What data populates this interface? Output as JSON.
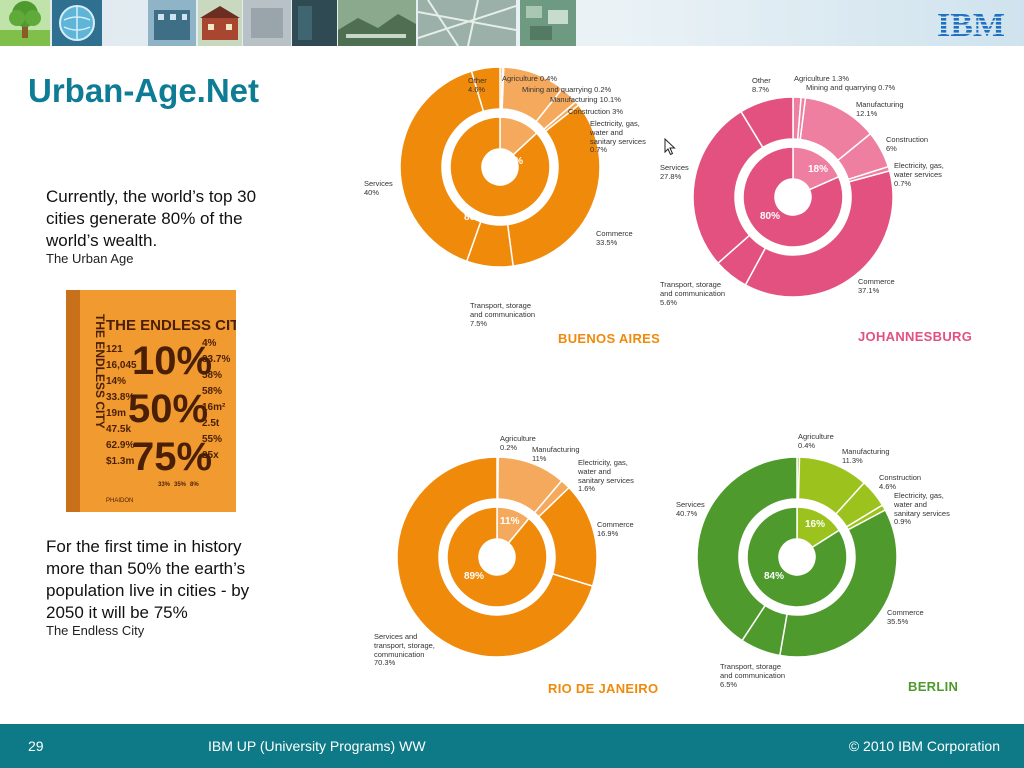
{
  "header": {
    "logo_text": "IBM"
  },
  "slide": {
    "title": "Urban-Age.Net"
  },
  "left": {
    "para1": "Currently, the world’s top 30 cities generate 80% of the world’s wealth.",
    "source1": "The Urban Age",
    "para2": "For the first time in history more than 50% the earth’s population live in cities - by 2050 it will be 75%",
    "source2": "The Endless City",
    "book": {
      "title": "THE ENDLESS CITY",
      "spine": "THE ENDLESS CITY",
      "big1": "10%",
      "big2": "50%",
      "big3": "75%",
      "left_numbers": [
        "121",
        "16,045",
        "14%",
        "33.8%",
        "19m",
        "47.5k",
        "62.9%",
        "$1.3m"
      ],
      "right_numbers": [
        "4%",
        "33.7%",
        "58%",
        "58%",
        "16m²",
        "2.5t",
        "55%",
        "25x"
      ],
      "bottom_numbers": [
        "33%",
        "35%",
        "8%"
      ],
      "publisher": "PHAIDON"
    }
  },
  "colors": {
    "teal": "#0e7c94",
    "orange": "#f08a0b",
    "orange_light": "#f5a95c",
    "pink": "#e2517f",
    "pink_light": "#ee7fa1",
    "green": "#4e9a2c",
    "green_light": "#9cc21d"
  },
  "charts": [
    {
      "city": "BUENOS AIRES",
      "inner": [
        "13%",
        "86%"
      ],
      "labels": [
        "Other\n4.6%",
        "Agriculture 0.4%",
        "Mining and quarrying 0.2%",
        "Manufacturing 10.1%",
        "Construction 3%",
        "Electricity, gas,\nwater and\nsanitary services\n0.7%",
        "Services\n40%",
        "Commerce\n33.5%",
        "Transport, storage\nand communication\n7.5%"
      ]
    },
    {
      "city": "JOHANNESBURG",
      "inner": [
        "18%",
        "80%"
      ],
      "labels": [
        "Other\n8.7%",
        "Agriculture 1.3%",
        "Mining and quarrying 0.7%",
        "Manufacturing\n12.1%",
        "Construction\n6%",
        "Electricity, gas,\nwater services\n0.7%",
        "Services\n27.8%",
        "Commerce\n37.1%",
        "Transport, storage\nand communication\n5.6%"
      ]
    },
    {
      "city": "RIO DE JANEIRO",
      "inner": [
        "11%",
        "89%"
      ],
      "labels": [
        "Agriculture\n0.2%",
        "Manufacturing\n11%",
        "Electricity, gas,\nwater and\nsanitary services\n1.6%",
        "Commerce\n16.9%",
        "Services and\ntransport, storage,\ncommunication\n70.3%"
      ]
    },
    {
      "city": "BERLIN",
      "inner": [
        "16%",
        "84%"
      ],
      "labels": [
        "Agriculture\n0.4%",
        "Manufacturing\n11.3%",
        "Construction\n4.6%",
        "Electricity, gas,\nwater and\nsanitary services\n0.9%",
        "Services\n40.7%",
        "Commerce\n35.5%",
        "Transport, storage\nand communication\n6.5%"
      ]
    }
  ],
  "footer": {
    "page": "29",
    "center": "IBM UP (University Programs) WW",
    "right": "© 2010 IBM Corporation"
  }
}
